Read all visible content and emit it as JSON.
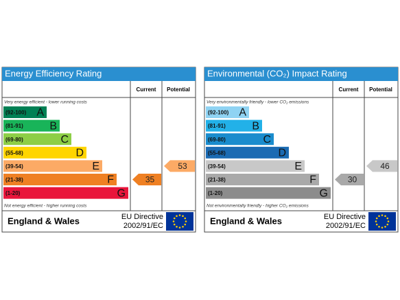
{
  "panels": [
    {
      "title": "Energy Efficiency Rating",
      "current_header": "Current",
      "potential_header": "Potential",
      "top_note": "Very energy efficient - lower running costs",
      "bottom_note": "Not energy efficient - higher running costs",
      "bands": [
        {
          "range": "(92-100)",
          "letter": "A",
          "color": "#008054"
        },
        {
          "range": "(81-91)",
          "letter": "B",
          "color": "#19b459"
        },
        {
          "range": "(69-80)",
          "letter": "C",
          "color": "#8dce46"
        },
        {
          "range": "(55-68)",
          "letter": "D",
          "color": "#ffd500"
        },
        {
          "range": "(39-54)",
          "letter": "E",
          "color": "#fcaa65"
        },
        {
          "range": "(21-38)",
          "letter": "F",
          "color": "#ef8023"
        },
        {
          "range": "(1-20)",
          "letter": "G",
          "color": "#e9153b"
        }
      ],
      "current": 35,
      "potential": 53,
      "region": "England & Wales",
      "directive": "EU Directive",
      "directive_code": "2002/91/EC"
    },
    {
      "title": "Environmental (CO₂) Impact Rating",
      "current_header": "Current",
      "potential_header": "Potential",
      "top_note": "Very environmentally friendly - lower CO₂ emissions",
      "bottom_note": "Not environmentally friendly - higher CO₂ emissions",
      "bands": [
        {
          "range": "(92-100)",
          "letter": "A",
          "color": "#8fd3f3"
        },
        {
          "range": "(81-91)",
          "letter": "B",
          "color": "#22b1e8"
        },
        {
          "range": "(69-80)",
          "letter": "C",
          "color": "#1a8ccd"
        },
        {
          "range": "(55-68)",
          "letter": "D",
          "color": "#1b6bb3"
        },
        {
          "range": "(39-54)",
          "letter": "E",
          "color": "#c8c8c8"
        },
        {
          "range": "(21-38)",
          "letter": "F",
          "color": "#a9a9a9"
        },
        {
          "range": "(1-20)",
          "letter": "G",
          "color": "#8c8c8c"
        }
      ],
      "current": 30,
      "potential": 46,
      "region": "England & Wales",
      "directive": "EU Directive",
      "directive_code": "2002/91/EC"
    }
  ]
}
